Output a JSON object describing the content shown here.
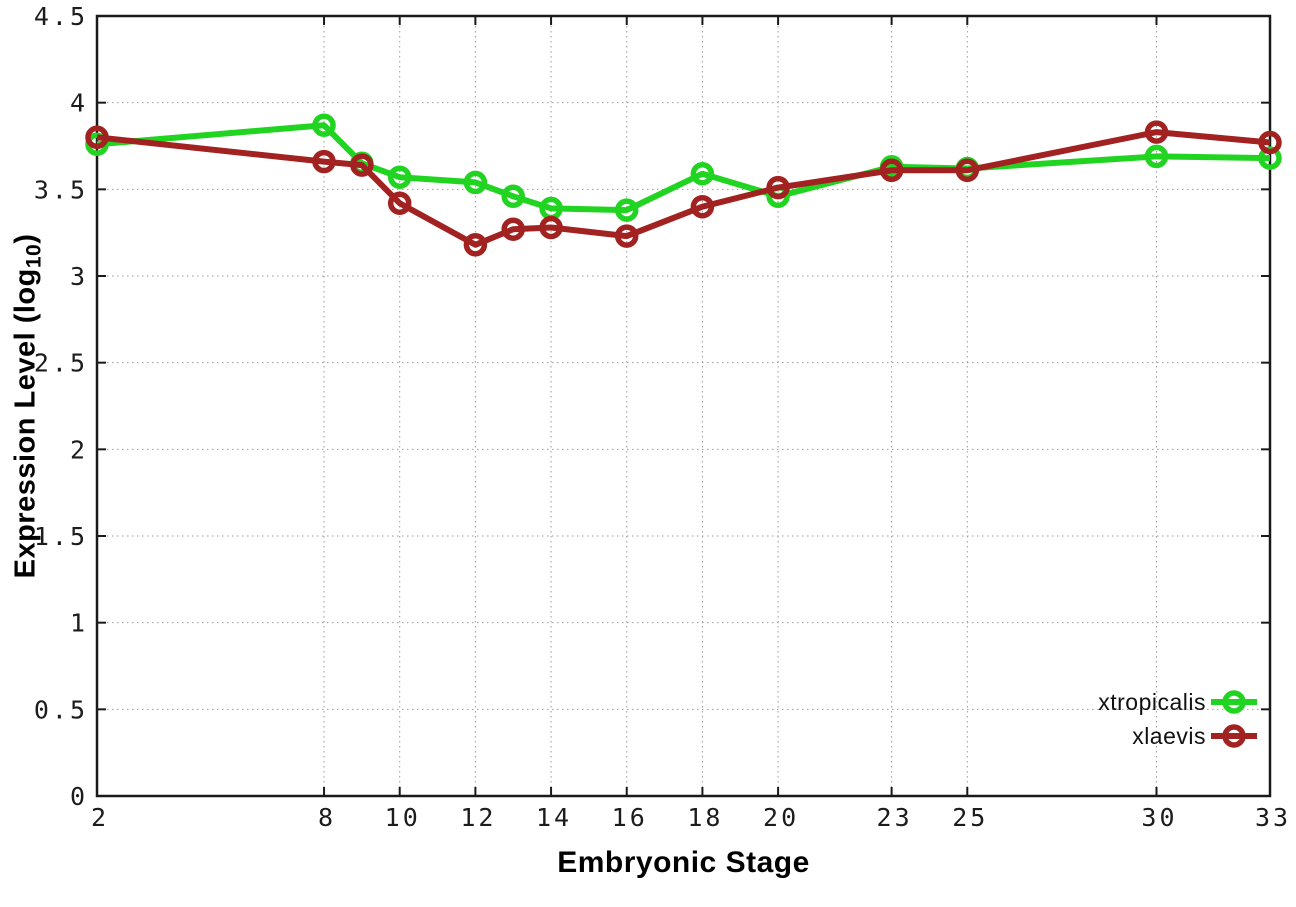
{
  "chart_data": {
    "type": "line",
    "title": "",
    "xlabel": "Embryonic Stage",
    "ylabel": "Expression Level (log10)",
    "ylabel_parts": {
      "main": "Expression Level (log",
      "sub": "10",
      "close": ")"
    },
    "xlim": [
      2,
      33
    ],
    "ylim": [
      0,
      4.5
    ],
    "grid": true,
    "legend_position": "bottom-right",
    "x_ticks": [
      "2",
      "8",
      "10",
      "12",
      "14",
      "16",
      "18",
      "20",
      "23",
      "25",
      "30",
      "33"
    ],
    "y_ticks": [
      "0",
      "0.5",
      "1",
      "1.5",
      "2",
      "2.5",
      "3",
      "3.5",
      "4",
      "4.5"
    ],
    "x": [
      2,
      8,
      9,
      10,
      12,
      13,
      14,
      16,
      18,
      20,
      23,
      25,
      30,
      33
    ],
    "series": [
      {
        "name": "xtropicalis",
        "color": "#22d422",
        "marker": "open-circle",
        "values": [
          3.76,
          3.87,
          3.65,
          3.57,
          3.54,
          3.46,
          3.39,
          3.38,
          3.59,
          3.46,
          3.63,
          3.62,
          3.69,
          3.68
        ]
      },
      {
        "name": "xlaevis",
        "color": "#a22222",
        "marker": "open-circle",
        "values": [
          3.8,
          3.66,
          3.64,
          3.42,
          3.18,
          3.27,
          3.28,
          3.23,
          3.4,
          3.51,
          3.61,
          3.61,
          3.83,
          3.77
        ]
      }
    ],
    "colors": {
      "axis": "#1a1a1a",
      "grid": "#9a9a9a",
      "background": "#ffffff"
    }
  }
}
